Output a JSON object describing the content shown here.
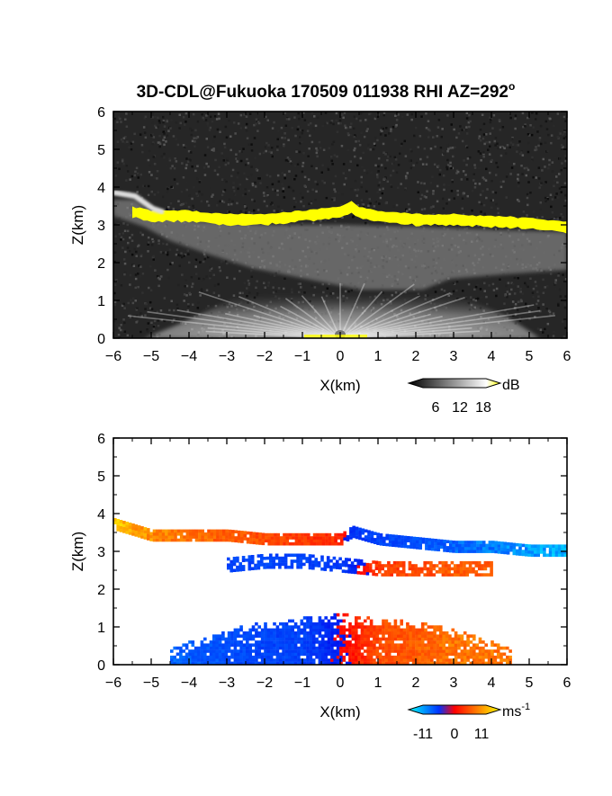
{
  "title": "3D-CDL@Fukuoka 170509 011938 RHI AZ=292",
  "title_superscript": "o",
  "chart_data": [
    {
      "type": "heatmap",
      "variable": "backscatter",
      "xlabel": "X(km)",
      "ylabel": "Z(km)",
      "xlim": [
        -6,
        6
      ],
      "ylim": [
        0,
        6
      ],
      "xticks": [
        "-6",
        "-5",
        "-4",
        "-3",
        "-2",
        "-1",
        "0",
        "1",
        "2",
        "3",
        "4",
        "5",
        "6"
      ],
      "yticks": [
        "0",
        "1",
        "2",
        "3",
        "4",
        "5",
        "6"
      ],
      "colorbar": {
        "unit": "dB",
        "ticks": [
          "6",
          "12",
          "18"
        ],
        "colors": [
          "#000000",
          "#ffffff",
          "#ffff00"
        ]
      },
      "layers": [
        {
          "feature": "cloud_base_saturated",
          "x": [
            -5.5,
            -5,
            -4,
            -3,
            -2,
            -1,
            -0.5,
            0,
            0.3,
            0.5,
            1,
            2,
            3,
            4,
            5,
            6
          ],
          "z": [
            3.4,
            3.3,
            3.3,
            3.2,
            3.2,
            3.3,
            3.35,
            3.4,
            3.55,
            3.4,
            3.3,
            3.2,
            3.2,
            3.15,
            3.1,
            3.0
          ]
        },
        {
          "feature": "aerosol_layer_top",
          "x": [
            -6,
            -5,
            -4,
            -3,
            -2,
            -1,
            0,
            1,
            2,
            3,
            4,
            5,
            6
          ],
          "z": [
            3.7,
            3.5,
            3.0,
            2.9,
            2.9,
            2.9,
            2.9,
            2.8,
            2.8,
            2.7,
            2.7,
            2.6,
            2.6
          ]
        },
        {
          "feature": "near_ground_return",
          "x": [
            -4,
            -2,
            0,
            2,
            4
          ],
          "z": [
            0.3,
            1.0,
            1.3,
            1.0,
            0.3
          ]
        }
      ]
    },
    {
      "type": "heatmap",
      "variable": "radial_velocity",
      "xlabel": "X(km)",
      "ylabel": "Z(km)",
      "xlim": [
        -6,
        6
      ],
      "ylim": [
        0,
        6
      ],
      "xticks": [
        "-6",
        "-5",
        "-4",
        "-3",
        "-2",
        "-1",
        "0",
        "1",
        "2",
        "3",
        "4",
        "5",
        "6"
      ],
      "yticks": [
        "0",
        "1",
        "2",
        "3",
        "4",
        "5",
        "6"
      ],
      "colorbar": {
        "unit": "ms",
        "unit_superscript": "-1",
        "ticks": [
          "-11",
          "0",
          "11"
        ],
        "colors": [
          "#00ffff",
          "#0033ff",
          "#ff0000",
          "#ffff00"
        ]
      },
      "layers": [
        {
          "feature": "cloud_layer",
          "x": [
            -6,
            -5,
            -4,
            -3,
            -2,
            -1,
            0,
            0.3,
            1,
            2,
            3,
            4,
            5,
            6
          ],
          "z": [
            3.7,
            3.4,
            3.4,
            3.4,
            3.3,
            3.3,
            3.3,
            3.5,
            3.3,
            3.2,
            3.1,
            3.1,
            3.0,
            3.0
          ],
          "velocity": [
            9,
            7,
            6,
            5,
            4,
            3,
            2,
            -3,
            -4,
            -5,
            -6,
            -7,
            -8,
            -9
          ]
        },
        {
          "feature": "mid_layer",
          "x": [
            -3,
            -2,
            -1,
            0,
            1,
            2,
            3,
            4
          ],
          "z": [
            2.6,
            2.7,
            2.7,
            2.6,
            2.5,
            2.5,
            2.5,
            2.5
          ],
          "velocity": [
            -4,
            -4,
            -4,
            -3,
            3,
            4,
            5,
            5
          ]
        },
        {
          "feature": "lower_layer",
          "x": [
            -4.5,
            -3,
            -2,
            -1,
            0,
            1,
            2,
            3,
            4.5
          ],
          "z": [
            0.4,
            0.9,
            1.1,
            1.2,
            1.3,
            1.2,
            1.1,
            0.9,
            0.4
          ],
          "velocity": [
            -6,
            -5,
            -4,
            -4,
            0,
            4,
            5,
            6,
            6
          ]
        }
      ]
    }
  ]
}
